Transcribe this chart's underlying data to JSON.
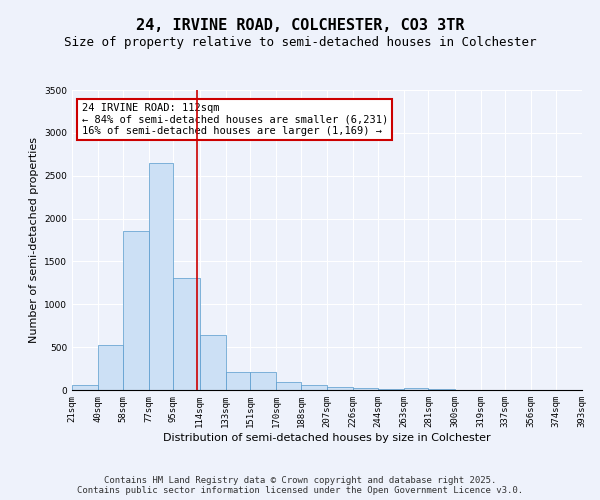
{
  "title_line1": "24, IRVINE ROAD, COLCHESTER, CO3 3TR",
  "title_line2": "Size of property relative to semi-detached houses in Colchester",
  "xlabel": "Distribution of semi-detached houses by size in Colchester",
  "ylabel": "Number of semi-detached properties",
  "footnote1": "Contains HM Land Registry data © Crown copyright and database right 2025.",
  "footnote2": "Contains public sector information licensed under the Open Government Licence v3.0.",
  "annotation_title": "24 IRVINE ROAD: 112sqm",
  "annotation_line2": "← 84% of semi-detached houses are smaller (6,231)",
  "annotation_line3": "16% of semi-detached houses are larger (1,169) →",
  "bar_edges": [
    21,
    40,
    58,
    77,
    95,
    114,
    133,
    151,
    170,
    188,
    207,
    226,
    244,
    263,
    281,
    300,
    319,
    337,
    356,
    374,
    393
  ],
  "bar_heights": [
    55,
    530,
    1850,
    2650,
    1310,
    640,
    210,
    210,
    90,
    55,
    35,
    25,
    15,
    20,
    10,
    5,
    5,
    5,
    3,
    3
  ],
  "bar_color": "#cce0f5",
  "bar_edge_color": "#5599cc",
  "red_line_x": 112,
  "ylim": [
    0,
    3500
  ],
  "yticks": [
    0,
    500,
    1000,
    1500,
    2000,
    2500,
    3000,
    3500
  ],
  "background_color": "#eef2fb",
  "grid_color": "#ffffff",
  "annotation_box_color": "#ffffff",
  "annotation_box_edge": "#cc0000",
  "red_line_color": "#cc0000",
  "title_fontsize": 11,
  "subtitle_fontsize": 9,
  "axis_label_fontsize": 8,
  "tick_fontsize": 6.5,
  "annotation_fontsize": 7.5,
  "footnote_fontsize": 6.5
}
